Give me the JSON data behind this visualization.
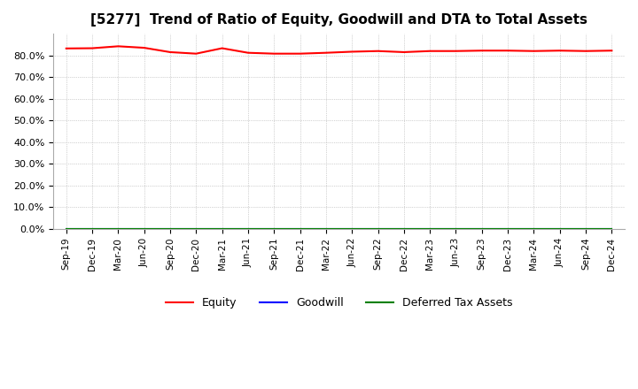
{
  "title": "[5277]  Trend of Ratio of Equity, Goodwill and DTA to Total Assets",
  "x_labels": [
    "Sep-19",
    "Dec-19",
    "Mar-20",
    "Jun-20",
    "Sep-20",
    "Dec-20",
    "Mar-21",
    "Jun-21",
    "Sep-21",
    "Dec-21",
    "Mar-22",
    "Jun-22",
    "Sep-22",
    "Dec-22",
    "Mar-23",
    "Jun-23",
    "Sep-23",
    "Dec-23",
    "Mar-24",
    "Jun-24",
    "Sep-24",
    "Dec-24"
  ],
  "equity": [
    0.832,
    0.833,
    0.842,
    0.835,
    0.815,
    0.808,
    0.833,
    0.812,
    0.808,
    0.808,
    0.812,
    0.817,
    0.82,
    0.815,
    0.82,
    0.82,
    0.822,
    0.822,
    0.82,
    0.822,
    0.82,
    0.822
  ],
  "goodwill": [
    0.0,
    0.0,
    0.0,
    0.0,
    0.0,
    0.0,
    0.0,
    0.0,
    0.0,
    0.0,
    0.0,
    0.0,
    0.0,
    0.0,
    0.0,
    0.0,
    0.0,
    0.0,
    0.0,
    0.0,
    0.0,
    0.0
  ],
  "dta": [
    0.0,
    0.0,
    0.0,
    0.0,
    0.0,
    0.0,
    0.0,
    0.0,
    0.0,
    0.0,
    0.0,
    0.0,
    0.0,
    0.0,
    0.0,
    0.0,
    0.0,
    0.0,
    0.0,
    0.0,
    0.0,
    0.0
  ],
  "equity_color": "#FF0000",
  "goodwill_color": "#0000FF",
  "dta_color": "#008000",
  "ylim": [
    0.0,
    0.9
  ],
  "yticks": [
    0.0,
    0.1,
    0.2,
    0.3,
    0.4,
    0.5,
    0.6,
    0.7,
    0.8
  ],
  "ytick_labels": [
    "0.0%",
    "10.0%",
    "20.0%",
    "30.0%",
    "40.0%",
    "50.0%",
    "60.0%",
    "70.0%",
    "80.0%"
  ],
  "grid_color": "#aaaaaa",
  "background_color": "#ffffff",
  "title_fontsize": 11,
  "legend_labels": [
    "Equity",
    "Goodwill",
    "Deferred Tax Assets"
  ]
}
